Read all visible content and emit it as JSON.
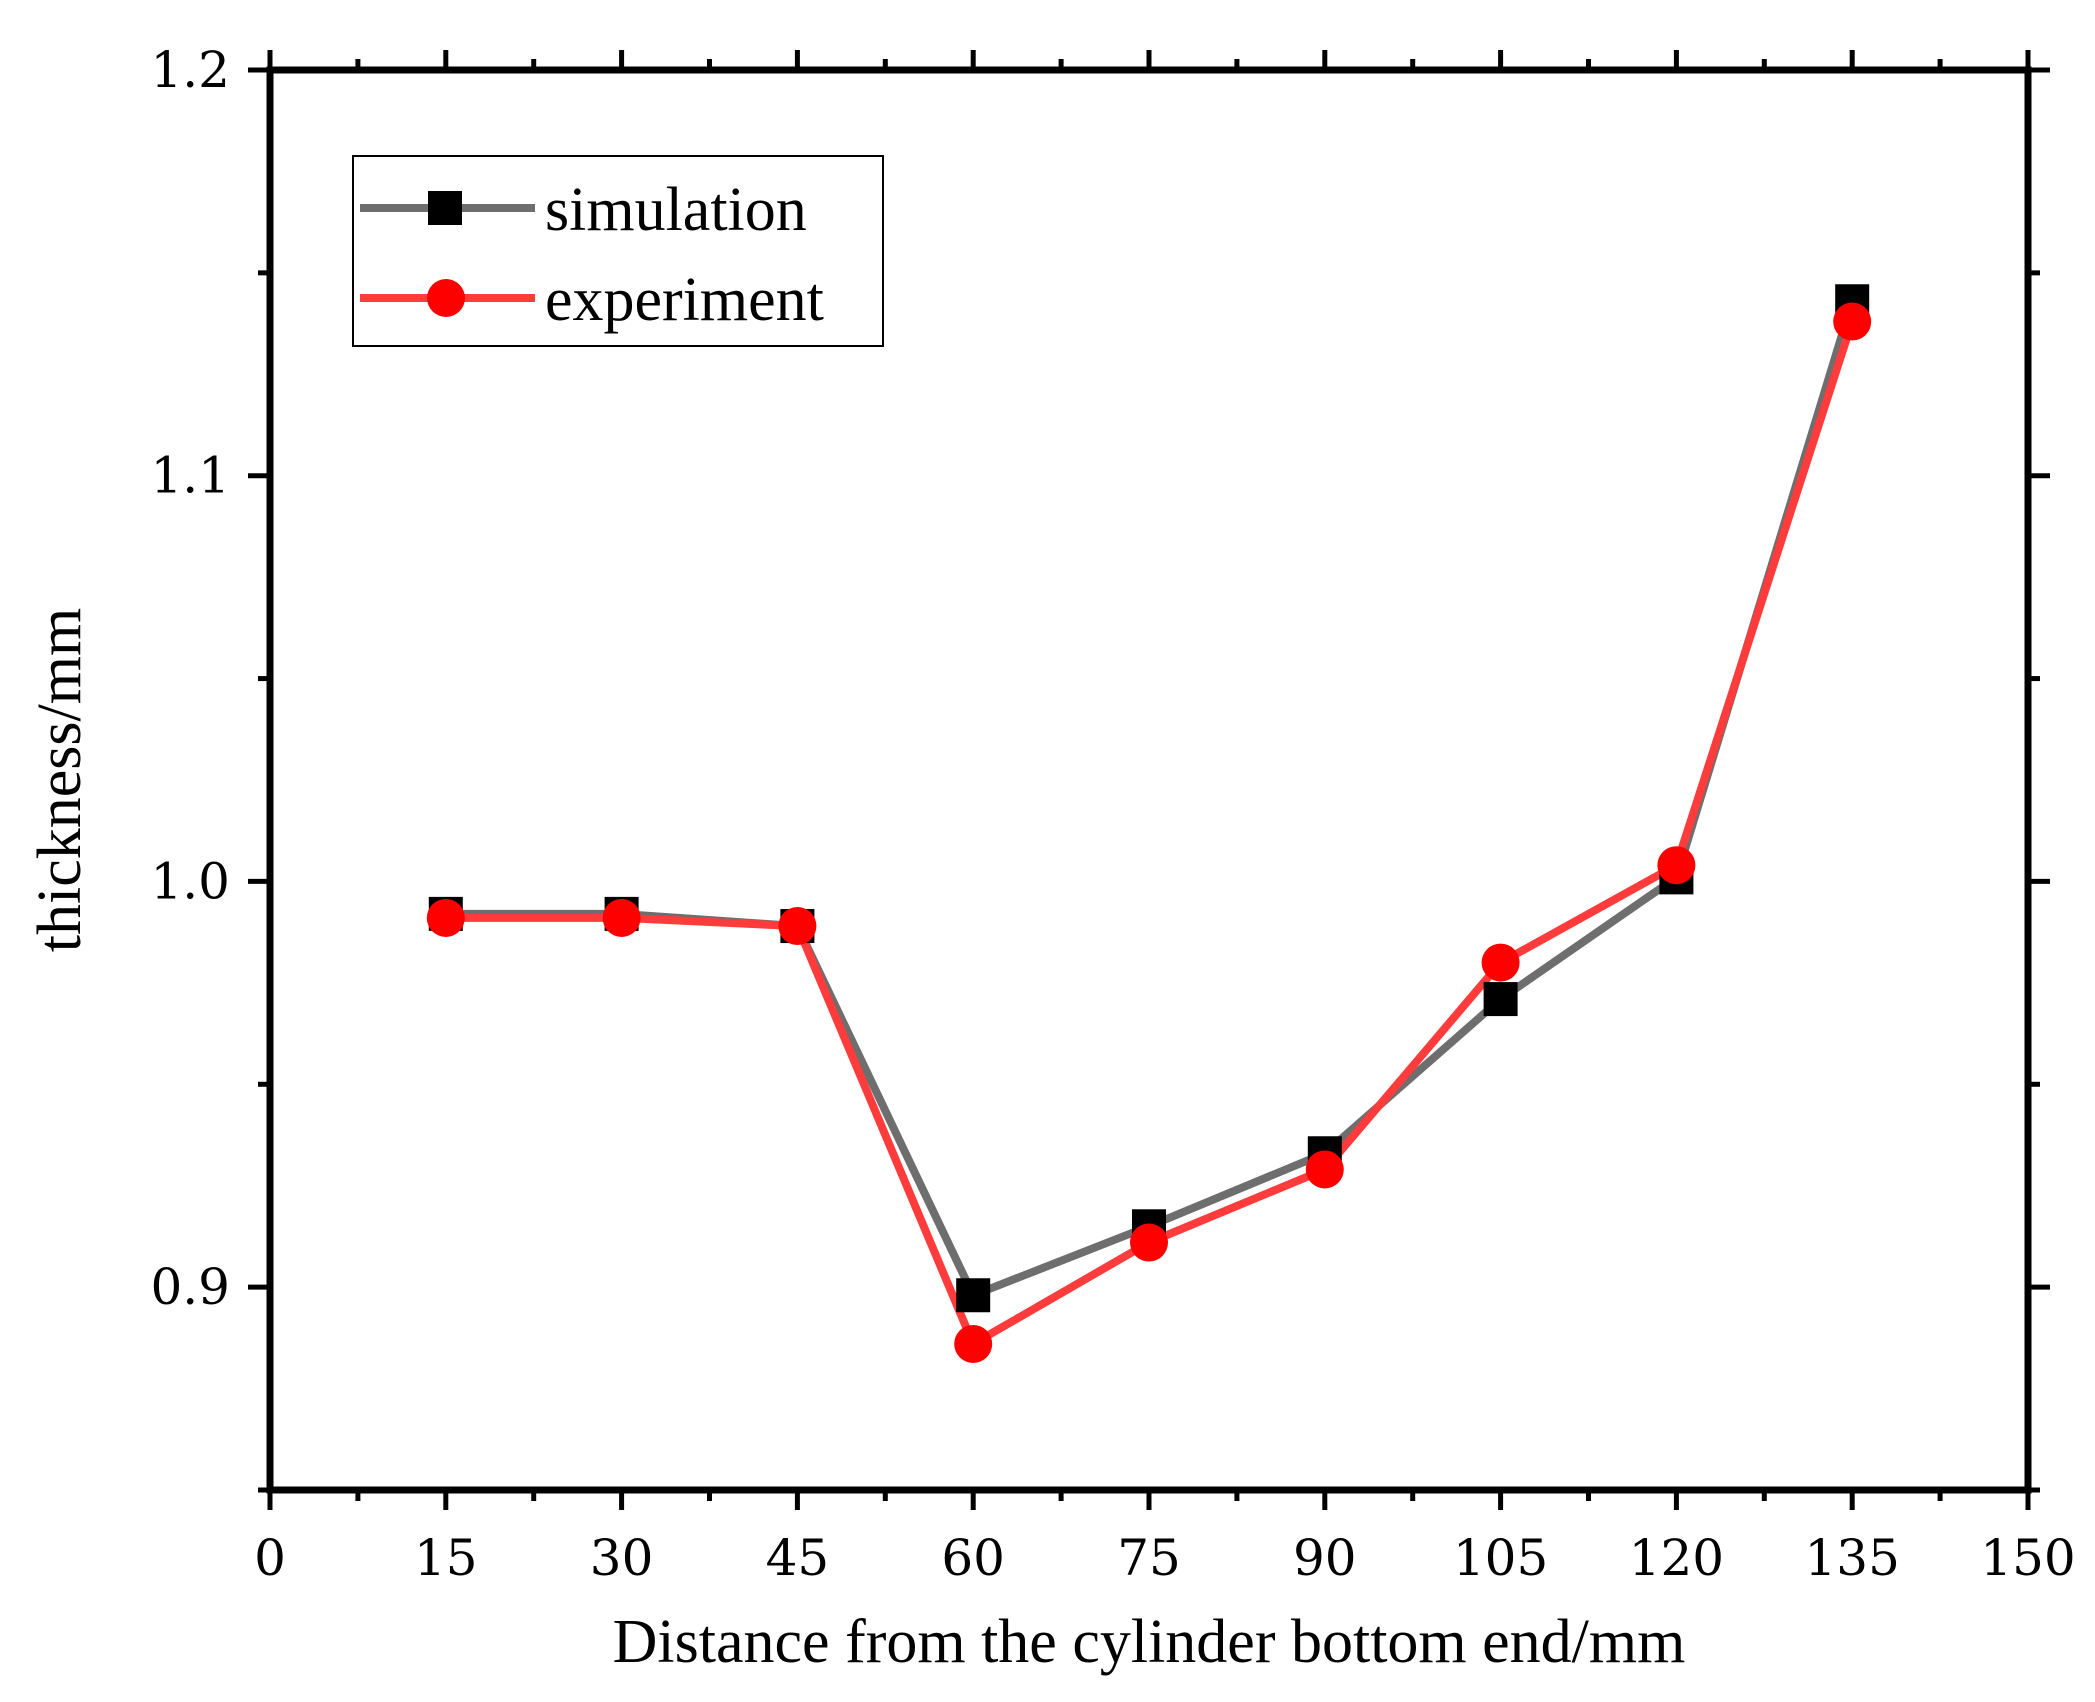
{
  "chart_data": {
    "type": "line",
    "title": "",
    "xlabel": "Distance from the cylinder bottom end/mm",
    "ylabel": "thickness/mm",
    "xlim": [
      0,
      150
    ],
    "ylim": [
      0.85,
      1.2
    ],
    "x_ticks": [
      0,
      15,
      30,
      45,
      60,
      75,
      90,
      105,
      120,
      135,
      150
    ],
    "x_tick_labels": [
      "0",
      "15",
      "30",
      "45",
      "60",
      "75",
      "90",
      "105",
      "120",
      "135",
      "150"
    ],
    "y_ticks": [
      0.9,
      1.0,
      1.1,
      1.2
    ],
    "y_tick_labels": [
      "0.9",
      "1.0",
      "1.1",
      "1.2"
    ],
    "y_minor_ticks": [
      0.85,
      0.95,
      1.05,
      1.15
    ],
    "grid": false,
    "legend_position": "top-left",
    "series": [
      {
        "name": "simulation",
        "color": "#6e6e6e",
        "marker_color": "#000000",
        "marker": "square",
        "x": [
          15,
          30,
          45,
          60,
          75,
          90,
          105,
          120,
          135
        ],
        "y": [
          0.992,
          0.992,
          0.989,
          0.898,
          0.915,
          0.933,
          0.971,
          1.001,
          1.143
        ]
      },
      {
        "name": "experiment",
        "color": "#ff3b3b",
        "marker_color": "#ff0000",
        "marker": "circle",
        "x": [
          15,
          30,
          45,
          60,
          75,
          90,
          105,
          120,
          135
        ],
        "y": [
          0.991,
          0.991,
          0.989,
          0.886,
          0.911,
          0.929,
          0.98,
          1.004,
          1.138
        ]
      }
    ]
  }
}
